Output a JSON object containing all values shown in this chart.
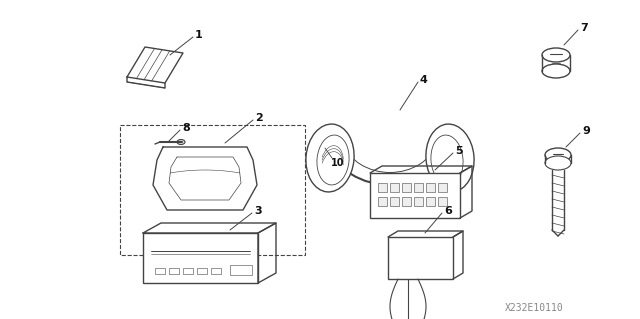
{
  "bg_color": "#ffffff",
  "line_color": "#444444",
  "label_color": "#111111",
  "watermark": "X232E10110",
  "figsize": [
    6.4,
    3.19
  ],
  "dpi": 100
}
